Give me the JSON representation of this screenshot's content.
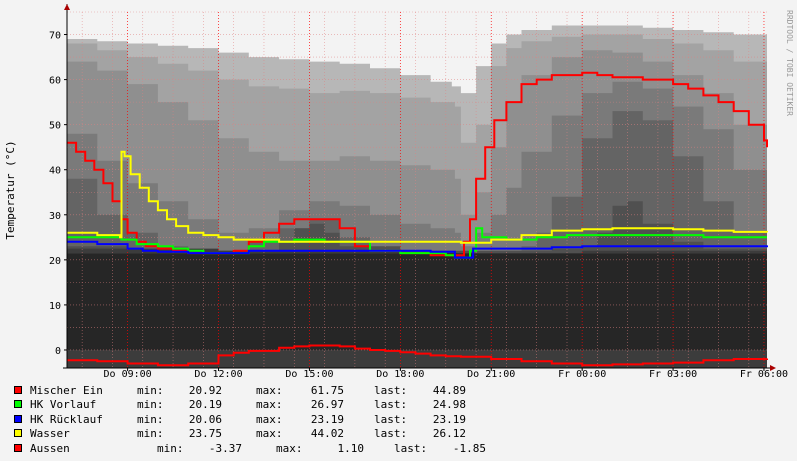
{
  "watermark": "RRDTOOL / TOBI OETIKER",
  "chart_data": {
    "type": "line",
    "ylabel": "Temperatur (°C)",
    "ylim": [
      -4,
      75
    ],
    "yticks": [
      0,
      10,
      20,
      30,
      40,
      50,
      60,
      70
    ],
    "xlim": [
      7,
      30.1
    ],
    "xticks": [
      {
        "t": 9,
        "label": "Do 09:00"
      },
      {
        "t": 12,
        "label": "Do 12:00"
      },
      {
        "t": 15,
        "label": "Do 15:00"
      },
      {
        "t": 18,
        "label": "Do 18:00"
      },
      {
        "t": 21,
        "label": "Do 21:00"
      },
      {
        "t": 24,
        "label": "Fr 00:00"
      },
      {
        "t": 27,
        "label": "Fr 03:00"
      },
      {
        "t": 30,
        "label": "Fr 06:00"
      }
    ],
    "grid": true,
    "background_bands": [
      {
        "color": "#b7b7b7",
        "x": [
          7,
          8,
          9,
          10,
          11,
          12,
          13,
          14,
          15,
          16,
          17,
          18,
          19,
          19.7,
          20,
          20.5,
          21,
          21.5,
          22,
          23,
          24,
          25,
          26,
          27,
          28,
          29,
          30.1
        ],
        "y": [
          69,
          68.5,
          68,
          67.5,
          67,
          66,
          65,
          64.5,
          64,
          63.5,
          62.5,
          61,
          59.5,
          58.5,
          57,
          63,
          68,
          70,
          71,
          72,
          72,
          72,
          71.5,
          71,
          70.5,
          70,
          69
        ]
      },
      {
        "color": "#a3a3a3",
        "x": [
          7,
          8,
          9,
          10,
          11,
          12,
          13,
          14,
          15,
          16,
          17,
          18,
          19,
          19.8,
          20,
          20.5,
          21,
          21.5,
          22,
          23,
          24,
          25,
          26,
          27,
          28,
          29,
          30.1
        ],
        "y": [
          68,
          66.5,
          65,
          63.5,
          62,
          60,
          58.5,
          58,
          57,
          57.5,
          57,
          56,
          55,
          54,
          46,
          50,
          63,
          67,
          68.5,
          69.5,
          70,
          70,
          69,
          68,
          66.5,
          64,
          61
        ]
      },
      {
        "color": "#8f8f8f",
        "x": [
          7,
          8,
          9,
          10,
          11,
          12,
          13,
          14,
          15,
          16,
          17,
          18,
          19,
          19.8,
          20,
          20.5,
          21,
          21.5,
          22,
          23,
          24,
          25,
          26,
          27,
          28,
          29,
          30.1
        ],
        "y": [
          64,
          62,
          59,
          55,
          51,
          47,
          44,
          42,
          42,
          43,
          42,
          41,
          40,
          38,
          30,
          35,
          45,
          55,
          61,
          65,
          66.5,
          66,
          64,
          61,
          57,
          50,
          40
        ]
      },
      {
        "color": "#7a7a7a",
        "x": [
          7,
          8,
          9,
          10,
          11,
          12,
          13,
          14,
          15,
          16,
          17,
          18,
          19,
          19.8,
          20,
          20.5,
          21,
          21.5,
          22,
          23,
          24,
          25,
          26,
          27,
          28,
          29,
          30.1
        ],
        "y": [
          48,
          42,
          37,
          33,
          29,
          26,
          27,
          31,
          33,
          32,
          30,
          28,
          27,
          26,
          23,
          26,
          30,
          36,
          44,
          52,
          57,
          59.5,
          58,
          54,
          49,
          40,
          30
        ]
      },
      {
        "color": "#646464",
        "x": [
          7,
          8,
          9,
          10,
          11,
          12,
          13,
          14,
          15,
          16,
          17,
          18,
          19,
          20,
          21,
          22,
          22.5,
          23,
          24,
          25,
          26,
          27,
          28,
          29,
          30.1
        ],
        "y": [
          38,
          30,
          26,
          23,
          22,
          22,
          24,
          27,
          29,
          25,
          22,
          21.5,
          21,
          21,
          22,
          23,
          26,
          34,
          47,
          53,
          51,
          43,
          33,
          26,
          22
        ]
      },
      {
        "color": "#505050",
        "x": [
          7,
          9,
          11,
          13,
          14,
          14.5,
          15,
          15.5,
          16,
          18,
          20,
          22,
          23,
          24,
          24.5,
          25,
          25.5,
          26,
          27,
          28,
          30.1
        ],
        "y": [
          23,
          22,
          22,
          22,
          24,
          27,
          28,
          26,
          23,
          22,
          22,
          22,
          22.5,
          23,
          26,
          32,
          33,
          28,
          24,
          22.5,
          22
        ]
      },
      {
        "color": "#3c3c3c",
        "x": [
          7,
          12,
          14,
          16,
          18,
          21,
          24,
          27,
          30.1
        ],
        "y": [
          22.5,
          22,
          22,
          22,
          21.5,
          21.5,
          22,
          22,
          22
        ]
      }
    ],
    "base_fill": {
      "color": "#262626",
      "value": 21.4
    },
    "series": [
      {
        "name": "Mischer Ein",
        "color": "#ff0000",
        "min": "20.92",
        "max": "61.75",
        "last": "44.89",
        "x": [
          7,
          7.3,
          7.6,
          7.9,
          8.2,
          8.5,
          8.8,
          9,
          9.3,
          9.6,
          10,
          10.5,
          11,
          11.5,
          12,
          12.5,
          13,
          13.5,
          14,
          14.5,
          15,
          15.5,
          16,
          16.5,
          17,
          17.5,
          18,
          18.5,
          19,
          19.5,
          19.9,
          20.1,
          20.3,
          20.5,
          20.8,
          21.1,
          21.5,
          22,
          22.5,
          23,
          23.5,
          24,
          24.5,
          25,
          25.5,
          26,
          26.5,
          27,
          27.5,
          28,
          28.5,
          29,
          29.5,
          30,
          30.1
        ],
        "y": [
          46,
          44,
          42,
          40,
          37,
          33,
          29,
          26,
          24,
          23,
          22.5,
          22,
          21.5,
          21.5,
          21.5,
          22,
          24,
          26,
          28,
          29,
          29,
          29,
          27,
          23,
          22,
          22,
          21.5,
          21.5,
          21,
          21,
          21,
          24,
          29,
          38,
          45,
          51,
          55,
          59,
          60,
          61,
          61,
          61.5,
          61,
          60.5,
          60.5,
          60,
          60,
          59,
          58,
          56.5,
          55,
          53,
          50,
          46.5,
          45
        ]
      },
      {
        "name": "HK Vorlauf",
        "color": "#00ff00",
        "min": "20.19",
        "max": "26.97",
        "last": "24.98",
        "x": [
          7,
          8,
          8.8,
          9.3,
          10,
          10.5,
          11,
          11.5,
          12,
          12.5,
          13,
          13.5,
          14,
          14.5,
          15,
          15.5,
          16,
          16.5,
          17,
          17.5,
          18,
          18.5,
          19,
          19.5,
          19.8,
          20,
          20.3,
          20.5,
          20.7,
          21,
          21.5,
          22,
          22.5,
          23,
          23.5,
          24,
          25,
          26,
          27,
          28,
          29,
          30.1
        ],
        "y": [
          25,
          25,
          24.5,
          23.5,
          23,
          22.5,
          22,
          21.5,
          21.5,
          21.5,
          23,
          24,
          24,
          24.5,
          24.5,
          24,
          24,
          24,
          22,
          22,
          21.5,
          21.5,
          21.5,
          21,
          20.5,
          20.5,
          22,
          27,
          25,
          25,
          24.5,
          24.5,
          25,
          25,
          25.5,
          25.5,
          25.5,
          25.5,
          25.5,
          25,
          25,
          25
        ]
      },
      {
        "name": "HK Rücklauf",
        "color": "#0000ff",
        "min": "20.06",
        "max": "23.19",
        "last": "23.19",
        "x": [
          7,
          8,
          9,
          9.5,
          10,
          11,
          12,
          12.5,
          13,
          14,
          15,
          16,
          17,
          18,
          19,
          19.8,
          20,
          20.4,
          21,
          22,
          23,
          24,
          25,
          26,
          27,
          28,
          29,
          30.1
        ],
        "y": [
          24,
          23.5,
          22.5,
          22,
          21.8,
          21.5,
          21.5,
          21.5,
          22,
          22,
          22,
          22,
          22,
          22,
          21.8,
          20.5,
          20.5,
          22.5,
          22.5,
          22.5,
          22.8,
          23,
          23,
          23,
          23,
          23,
          23,
          23.2
        ]
      },
      {
        "name": "Wasser",
        "color": "#ffff00",
        "min": "23.75",
        "max": "44.02",
        "last": "26.12",
        "x": [
          7,
          7.5,
          8,
          8.5,
          8.75,
          8.8,
          8.9,
          9.1,
          9.4,
          9.7,
          10,
          10.3,
          10.6,
          11,
          11.5,
          12,
          12.5,
          13,
          14,
          15,
          16,
          17,
          18,
          19,
          20,
          21,
          22,
          23,
          24,
          25,
          26,
          27,
          28,
          29,
          30.1
        ],
        "y": [
          26,
          26,
          25.5,
          25.5,
          25,
          44,
          43,
          39,
          36,
          33,
          31,
          29,
          27.5,
          26,
          25.5,
          25,
          24.5,
          24.5,
          24,
          24,
          24,
          24,
          24,
          24,
          23.8,
          24.5,
          25.5,
          26.5,
          26.8,
          27,
          27,
          26.8,
          26.5,
          26.2,
          26.1
        ]
      },
      {
        "name": "Aussen",
        "color": "#ff0000",
        "min": "-3.37",
        "max": "1.10",
        "last": "-1.85",
        "x": [
          7,
          8,
          9,
          10,
          11,
          12,
          12.5,
          13,
          14,
          14.5,
          15,
          15.5,
          16,
          16.5,
          17,
          17.5,
          18,
          18.5,
          19,
          19.5,
          20,
          21,
          22,
          23,
          24,
          25,
          26,
          27,
          28,
          29,
          30.1
        ],
        "y": [
          -2.3,
          -2.5,
          -3,
          -3.4,
          -3,
          -1.2,
          -0.6,
          -0.2,
          0.5,
          0.8,
          1,
          1,
          0.8,
          0.3,
          0,
          -0.2,
          -0.5,
          -0.8,
          -1.2,
          -1.4,
          -1.5,
          -2,
          -2.5,
          -3,
          -3.4,
          -3.2,
          -3,
          -2.8,
          -2.3,
          -2,
          -1.9
        ]
      }
    ],
    "legend": {
      "min_label": "min:",
      "max_label": "max:",
      "last_label": "last:"
    }
  }
}
